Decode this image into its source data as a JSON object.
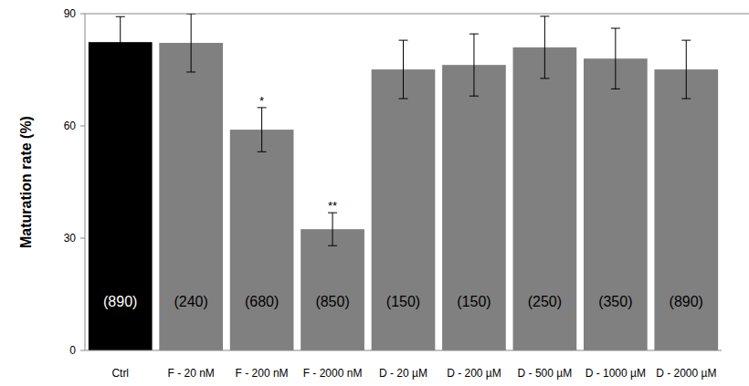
{
  "chart_data": {
    "type": "bar",
    "y_label": "Maturation rate (%)",
    "categories": [
      "Ctrl",
      "F - 20 nM",
      "F - 200 nM",
      "F - 2000 nM",
      "D - 20 µM",
      "D - 200 µM",
      "D - 500 µM",
      "D - 1000 µM",
      "D - 2000 µM"
    ],
    "values": [
      82.4,
      82.2,
      59,
      32.4,
      75.1,
      76.3,
      81,
      78,
      75.1
    ],
    "errors": [
      6.8,
      7.8,
      5.9,
      4.4,
      7.8,
      8.3,
      8.3,
      8.1,
      7.8
    ],
    "colors": [
      "#000000",
      "#808080",
      "#808080",
      "#808080",
      "#808080",
      "#808080",
      "#808080",
      "#808080",
      "#808080"
    ],
    "sample_labels": [
      "(890)",
      "(240)",
      "(680)",
      "(850)",
      "(150)",
      "(150)",
      "(250)",
      "(350)",
      "(890)"
    ],
    "annotations": [
      {
        "index": 2,
        "text": "*"
      },
      {
        "index": 3,
        "text": "**"
      }
    ],
    "ylim": [
      0,
      90
    ],
    "yticks": [
      0,
      30,
      60,
      90
    ],
    "grid": false
  }
}
